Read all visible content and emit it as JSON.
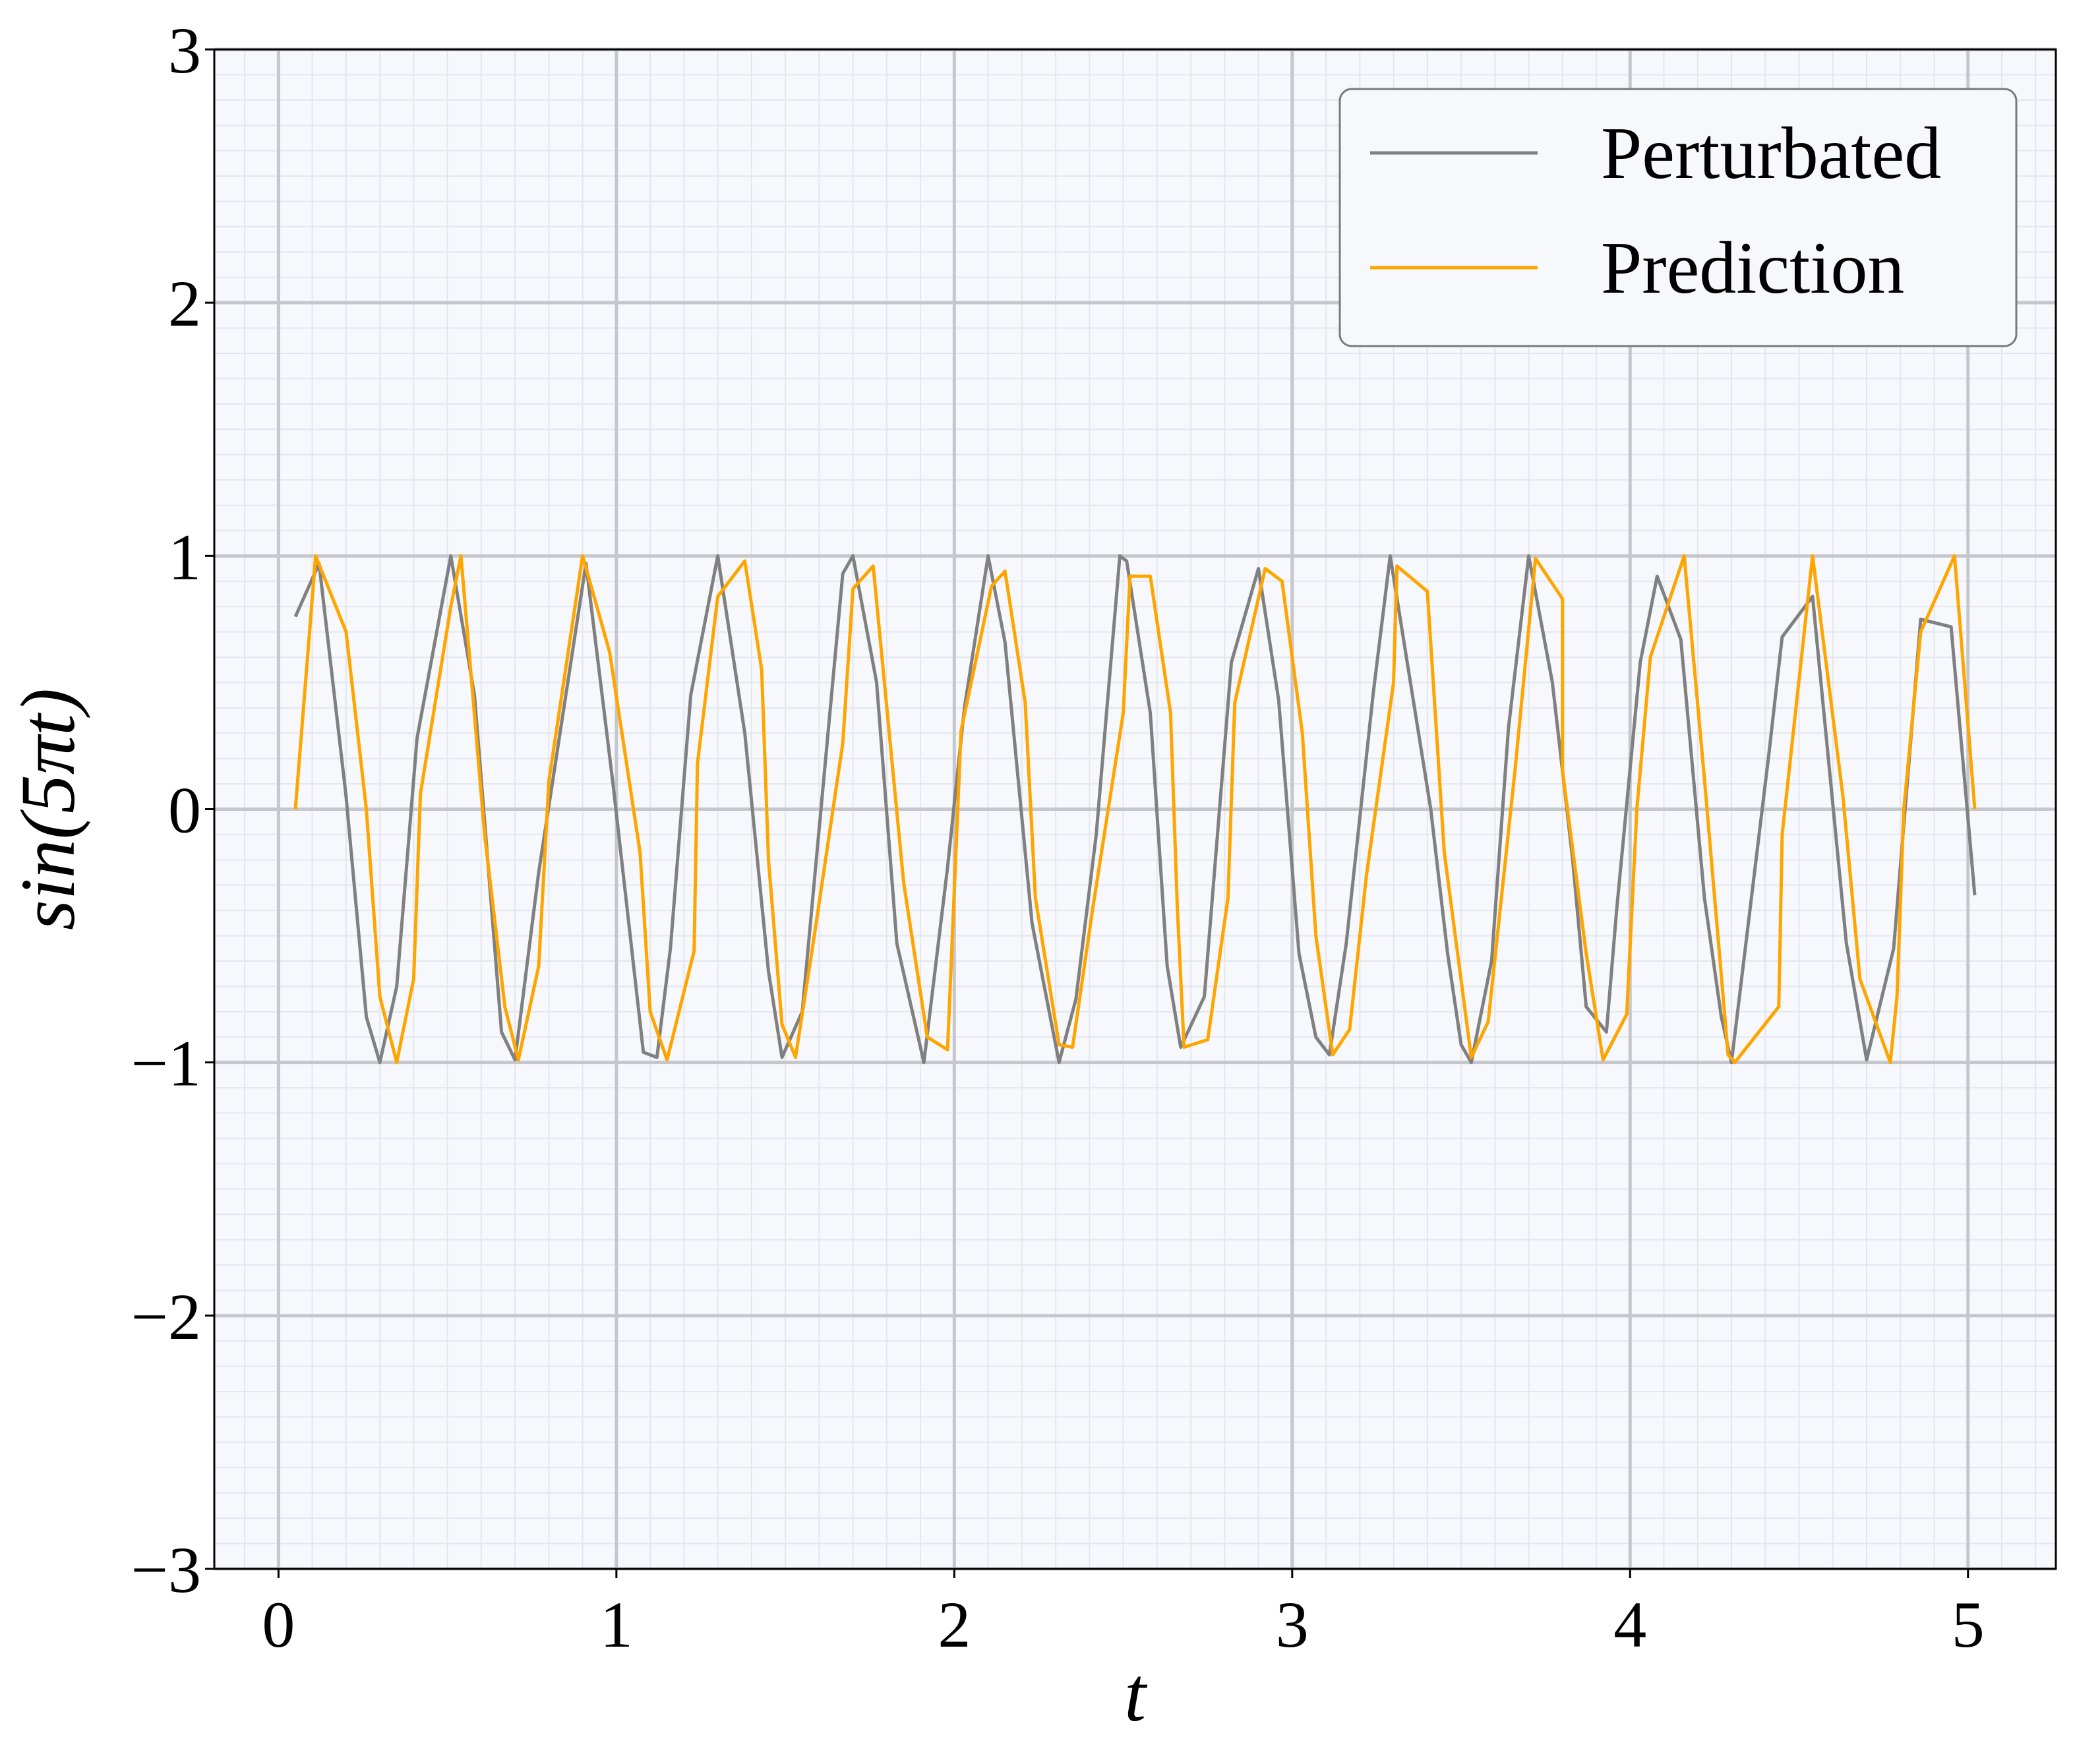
{
  "chart_data": {
    "type": "line",
    "xlabel": "t",
    "ylabel": "sin(5πt)",
    "xlim": [
      -0.19,
      5.26
    ],
    "ylim": [
      -3,
      3
    ],
    "x_ticks": [
      0,
      1,
      2,
      3,
      4,
      5
    ],
    "y_ticks": [
      -3,
      -2,
      -1,
      0,
      1,
      2,
      3
    ],
    "x_tick_labels": [
      "0",
      "1",
      "2",
      "3",
      "4",
      "5"
    ],
    "y_tick_labels": [
      "−3",
      "−2",
      "−1",
      "0",
      "1",
      "2",
      "3"
    ],
    "grid": true,
    "minor_grid": true,
    "background_color": "#f7f8fc",
    "legend_position": "top-right",
    "series": [
      {
        "name": "Perturbated",
        "color": "#808080",
        "points": [
          [
            0.05,
            0.76
          ],
          [
            0.12,
            0.97
          ],
          [
            0.2,
            0.05
          ],
          [
            0.26,
            -0.82
          ],
          [
            0.3,
            -1.0
          ],
          [
            0.35,
            -0.7
          ],
          [
            0.41,
            0.28
          ],
          [
            0.51,
            1.0
          ],
          [
            0.58,
            0.45
          ],
          [
            0.66,
            -0.88
          ],
          [
            0.7,
            -0.99
          ],
          [
            0.77,
            -0.25
          ],
          [
            0.91,
            0.97
          ],
          [
            0.99,
            0.1
          ],
          [
            1.08,
            -0.96
          ],
          [
            1.12,
            -0.98
          ],
          [
            1.16,
            -0.55
          ],
          [
            1.22,
            0.45
          ],
          [
            1.3,
            1.0
          ],
          [
            1.38,
            0.3
          ],
          [
            1.45,
            -0.64
          ],
          [
            1.49,
            -0.98
          ],
          [
            1.55,
            -0.8
          ],
          [
            1.67,
            0.93
          ],
          [
            1.7,
            1.0
          ],
          [
            1.77,
            0.5
          ],
          [
            1.83,
            -0.53
          ],
          [
            1.91,
            -1.0
          ],
          [
            1.98,
            -0.23
          ],
          [
            2.03,
            0.4
          ],
          [
            2.1,
            1.0
          ],
          [
            2.15,
            0.66
          ],
          [
            2.23,
            -0.45
          ],
          [
            2.31,
            -1.0
          ],
          [
            2.36,
            -0.75
          ],
          [
            2.42,
            -0.1
          ],
          [
            2.49,
            1.0
          ],
          [
            2.51,
            0.98
          ],
          [
            2.58,
            0.38
          ],
          [
            2.63,
            -0.62
          ],
          [
            2.67,
            -0.94
          ],
          [
            2.74,
            -0.74
          ],
          [
            2.82,
            0.58
          ],
          [
            2.9,
            0.95
          ],
          [
            2.96,
            0.43
          ],
          [
            3.02,
            -0.57
          ],
          [
            3.07,
            -0.9
          ],
          [
            3.11,
            -0.97
          ],
          [
            3.16,
            -0.53
          ],
          [
            3.24,
            0.46
          ],
          [
            3.29,
            1.0
          ],
          [
            3.41,
            0.0
          ],
          [
            3.46,
            -0.57
          ],
          [
            3.5,
            -0.93
          ],
          [
            3.53,
            -1.0
          ],
          [
            3.59,
            -0.6
          ],
          [
            3.64,
            0.32
          ],
          [
            3.7,
            1.0
          ],
          [
            3.77,
            0.5
          ],
          [
            3.83,
            -0.2
          ],
          [
            3.87,
            -0.78
          ],
          [
            3.93,
            -0.88
          ],
          [
            3.96,
            -0.4
          ],
          [
            4.03,
            0.58
          ],
          [
            4.08,
            0.92
          ],
          [
            4.15,
            0.67
          ],
          [
            4.22,
            -0.35
          ],
          [
            4.27,
            -0.82
          ],
          [
            4.3,
            -1.0
          ],
          [
            4.41,
            0.21
          ],
          [
            4.45,
            0.68
          ],
          [
            4.54,
            0.84
          ],
          [
            4.64,
            -0.53
          ],
          [
            4.7,
            -0.99
          ],
          [
            4.78,
            -0.55
          ],
          [
            4.86,
            0.75
          ],
          [
            4.95,
            0.72
          ],
          [
            5.02,
            -0.34
          ]
        ]
      },
      {
        "name": "Prediction",
        "color": "#ffa500",
        "points": [
          [
            0.05,
            0.0
          ],
          [
            0.11,
            1.0
          ],
          [
            0.2,
            0.7
          ],
          [
            0.26,
            0.0
          ],
          [
            0.3,
            -0.74
          ],
          [
            0.35,
            -1.0
          ],
          [
            0.4,
            -0.67
          ],
          [
            0.42,
            0.06
          ],
          [
            0.51,
            0.8
          ],
          [
            0.54,
            1.0
          ],
          [
            0.61,
            -0.1
          ],
          [
            0.67,
            -0.78
          ],
          [
            0.71,
            -0.99
          ],
          [
            0.77,
            -0.62
          ],
          [
            0.8,
            0.11
          ],
          [
            0.9,
            1.0
          ],
          [
            0.98,
            0.62
          ],
          [
            1.07,
            -0.17
          ],
          [
            1.1,
            -0.8
          ],
          [
            1.15,
            -0.99
          ],
          [
            1.23,
            -0.56
          ],
          [
            1.24,
            0.18
          ],
          [
            1.3,
            0.84
          ],
          [
            1.38,
            0.98
          ],
          [
            1.43,
            0.55
          ],
          [
            1.45,
            -0.2
          ],
          [
            1.49,
            -0.85
          ],
          [
            1.53,
            -0.98
          ],
          [
            1.58,
            -0.55
          ],
          [
            1.67,
            0.26
          ],
          [
            1.7,
            0.87
          ],
          [
            1.76,
            0.96
          ],
          [
            1.85,
            -0.29
          ],
          [
            1.92,
            -0.9
          ],
          [
            1.98,
            -0.95
          ],
          [
            2.02,
            0.31
          ],
          [
            2.11,
            0.88
          ],
          [
            2.15,
            0.94
          ],
          [
            2.21,
            0.42
          ],
          [
            2.24,
            -0.35
          ],
          [
            2.31,
            -0.93
          ],
          [
            2.35,
            -0.94
          ],
          [
            2.41,
            -0.39
          ],
          [
            2.5,
            0.38
          ],
          [
            2.52,
            0.92
          ],
          [
            2.58,
            0.92
          ],
          [
            2.64,
            0.38
          ],
          [
            2.66,
            -0.39
          ],
          [
            2.68,
            -0.94
          ],
          [
            2.75,
            -0.91
          ],
          [
            2.81,
            -0.35
          ],
          [
            2.83,
            0.42
          ],
          [
            2.92,
            0.95
          ],
          [
            2.97,
            0.9
          ],
          [
            3.03,
            0.3
          ],
          [
            3.07,
            -0.5
          ],
          [
            3.12,
            -0.97
          ],
          [
            3.17,
            -0.87
          ],
          [
            3.22,
            -0.26
          ],
          [
            3.3,
            0.5
          ],
          [
            3.31,
            0.96
          ],
          [
            3.4,
            0.86
          ],
          [
            3.45,
            -0.17
          ],
          [
            3.53,
            -0.98
          ],
          [
            3.58,
            -0.84
          ],
          [
            3.66,
            0.16
          ],
          [
            3.72,
            0.99
          ],
          [
            3.8,
            0.83
          ],
          [
            3.8,
            0.15
          ],
          [
            3.87,
            -0.57
          ],
          [
            3.92,
            -0.99
          ],
          [
            3.99,
            -0.81
          ],
          [
            4.02,
            0.0
          ],
          [
            4.06,
            0.6
          ],
          [
            4.16,
            1.0
          ],
          [
            4.22,
            0.12
          ],
          [
            4.29,
            -0.97
          ],
          [
            4.31,
            -1.0
          ],
          [
            4.44,
            -0.78
          ],
          [
            4.45,
            -0.1
          ],
          [
            4.54,
            1.0
          ],
          [
            4.63,
            0.05
          ],
          [
            4.68,
            -0.67
          ],
          [
            4.77,
            -1.0
          ],
          [
            4.79,
            -0.74
          ],
          [
            4.81,
            0.0
          ],
          [
            4.86,
            0.7
          ],
          [
            4.96,
            1.0
          ],
          [
            5.02,
            0.0
          ]
        ]
      }
    ]
  }
}
